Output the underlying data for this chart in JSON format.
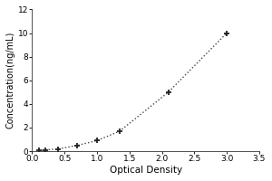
{
  "title": "",
  "xlabel": "Optical Density",
  "ylabel": "Concentration(ng/mL)",
  "x_data": [
    0.1,
    0.2,
    0.4,
    0.7,
    1.0,
    1.35,
    2.1,
    3.0
  ],
  "y_data": [
    0.05,
    0.1,
    0.2,
    0.5,
    0.9,
    1.7,
    5.0,
    10.0
  ],
  "xlim": [
    0,
    3.5
  ],
  "ylim": [
    0,
    12
  ],
  "xticks": [
    0,
    0.5,
    1.0,
    1.5,
    2.0,
    2.5,
    3.0,
    3.5
  ],
  "yticks": [
    0,
    2,
    4,
    6,
    8,
    10,
    12
  ],
  "line_color": "#444444",
  "marker_color": "#222222",
  "marker": "+",
  "line_style": ":",
  "bg_color": "#ffffff",
  "fig_bg": "#ffffff",
  "xlabel_fontsize": 7.5,
  "ylabel_fontsize": 7,
  "tick_fontsize": 6.5,
  "linewidth": 1.0,
  "markersize": 5,
  "markeredgewidth": 1.3
}
